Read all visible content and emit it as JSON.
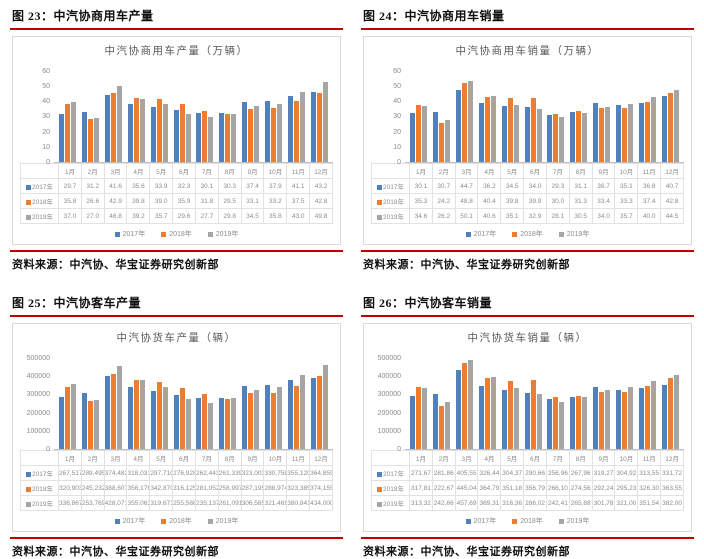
{
  "page": {
    "source_label": "资料来源：中汽协、华宝证券研究创新部"
  },
  "colors": {
    "rule": "#c00000",
    "series": [
      "#4f81bd",
      "#ed7d31",
      "#a5a5a5"
    ],
    "chart_border": "#d9d9d9",
    "table_border": "#e2e2e2",
    "muted_text": "#8c8c8c"
  },
  "legend_years": [
    "2017年",
    "2018年",
    "2019年"
  ],
  "chart_data": [
    {
      "type": "bar",
      "caption": "图 23：中汽协商用车产量",
      "title": "中汽协商用车产量（万辆）",
      "categories": [
        "1月",
        "2月",
        "3月",
        "4月",
        "5月",
        "6月",
        "7月",
        "8月",
        "9月",
        "10月",
        "11月",
        "12月"
      ],
      "ylim": [
        0,
        60
      ],
      "y_ticks": [
        0,
        10,
        20,
        30,
        40,
        50,
        60
      ],
      "grid": "off",
      "legend_position": "bottom",
      "series": [
        {
          "name": "2017年",
          "values": [
            29.7,
            31.2,
            41.6,
            35.6,
            33.9,
            32.3,
            30.1,
            30.3,
            37.4,
            37.9,
            41.1,
            43.2
          ],
          "labels": [
            "29.7",
            "31.2",
            "41.6",
            "35.6",
            "33.9",
            "32.3",
            "30.1",
            "30.3",
            "37.4",
            "37.9",
            "41.1",
            "43.2"
          ]
        },
        {
          "name": "2018年",
          "values": [
            35.8,
            26.6,
            42.9,
            39.8,
            39.0,
            35.9,
            31.8,
            29.5,
            33.1,
            33.2,
            37.5,
            42.8
          ],
          "labels": [
            "35.8",
            "26.6",
            "42.9",
            "39.8",
            "39.0",
            "35.9",
            "31.8",
            "29.5",
            "33.1",
            "33.2",
            "37.5",
            "42.8"
          ]
        },
        {
          "name": "2019年",
          "values": [
            37.0,
            27.0,
            46.8,
            39.2,
            35.7,
            29.6,
            27.7,
            29.8,
            34.5,
            35.8,
            43.0,
            49.8
          ],
          "labels": [
            "37.0",
            "27.0",
            "46.8",
            "39.2",
            "35.7",
            "29.6",
            "27.7",
            "29.8",
            "34.5",
            "35.8",
            "43.0",
            "49.8"
          ]
        }
      ]
    },
    {
      "type": "bar",
      "caption": "图 24：中汽协商用车销量",
      "title": "中汽协商用车销量（万辆）",
      "categories": [
        "1月",
        "2月",
        "3月",
        "4月",
        "5月",
        "6月",
        "7月",
        "8月",
        "9月",
        "10月",
        "11月",
        "12月"
      ],
      "ylim": [
        0,
        60
      ],
      "y_ticks": [
        0,
        10,
        20,
        30,
        40,
        50,
        60
      ],
      "grid": "off",
      "legend_position": "bottom",
      "series": [
        {
          "name": "2017年",
          "values": [
            30.1,
            30.7,
            44.7,
            36.2,
            34.5,
            34.0,
            29.3,
            31.1,
            36.7,
            35.1,
            36.8,
            40.7
          ],
          "labels": [
            "30.1",
            "30.7",
            "44.7",
            "36.2",
            "34.5",
            "34.0",
            "29.3",
            "31.1",
            "36.7",
            "35.1",
            "36.8",
            "40.7"
          ]
        },
        {
          "name": "2018年",
          "values": [
            35.3,
            24.2,
            48.8,
            40.4,
            39.8,
            39.9,
            30.0,
            31.3,
            33.4,
            33.3,
            37.4,
            42.8
          ],
          "labels": [
            "35.3",
            "24.2",
            "48.8",
            "40.4",
            "39.8",
            "39.9",
            "30.0",
            "31.3",
            "33.4",
            "33.3",
            "37.4",
            "42.8"
          ]
        },
        {
          "name": "2019年",
          "values": [
            34.6,
            26.2,
            50.1,
            40.6,
            35.1,
            32.9,
            28.1,
            30.5,
            34.0,
            35.7,
            40.0,
            44.5
          ],
          "labels": [
            "34.6",
            "26.2",
            "50.1",
            "40.6",
            "35.1",
            "32.9",
            "28.1",
            "30.5",
            "34.0",
            "35.7",
            "40.0",
            "44.5"
          ]
        }
      ]
    },
    {
      "type": "bar",
      "caption": "图 25：中汽协客车产量",
      "title": "中汽协货车产量（辆）",
      "categories": [
        "1月",
        "2月",
        "3月",
        "4月",
        "5月",
        "6月",
        "7月",
        "8月",
        "9月",
        "10月",
        "11月",
        "12月"
      ],
      "ylim": [
        0,
        500000
      ],
      "y_ticks": [
        0,
        100000,
        200000,
        300000,
        400000,
        500000
      ],
      "grid": "off",
      "legend_position": "bottom",
      "series": [
        {
          "name": "2017年",
          "values": [
            267517,
            289495,
            374482,
            318031,
            297710,
            276928,
            262443,
            261339,
            323003,
            330758,
            355120,
            364859
          ],
          "labels": [
            "267,517",
            "289,495",
            "374,482",
            "318,031",
            "297,710",
            "276,928",
            "262,443",
            "261,339",
            "323,003",
            "330,758",
            "355,120",
            "364,859"
          ]
        },
        {
          "name": "2018年",
          "values": [
            320903,
            245232,
            388607,
            356176,
            342870,
            316125,
            281052,
            258997,
            287195,
            288974,
            323385,
            374155
          ],
          "labels": [
            "320,903",
            "245,232",
            "388,607",
            "356,176",
            "342,870",
            "316,125",
            "281,052",
            "258,997",
            "287,195",
            "288,974",
            "323,385",
            "374,155"
          ]
        },
        {
          "name": "2019年",
          "values": [
            336867,
            253769,
            428071,
            355063,
            319671,
            255588,
            235137,
            261091,
            306585,
            321469,
            380841,
            434000
          ],
          "labels": [
            "336,867",
            "253,769",
            "428,071",
            "355,063",
            "319,671",
            "255,588",
            "235,137",
            "261,091",
            "306,585",
            "321,469",
            "380,841",
            "434,000"
          ]
        }
      ]
    },
    {
      "type": "bar",
      "caption": "图 26：中汽协客车销量",
      "title": "中汽协货车销量（辆）",
      "categories": [
        "1月",
        "2月",
        "3月",
        "4月",
        "5月",
        "6月",
        "7月",
        "8月",
        "9月",
        "10月",
        "11月",
        "12月"
      ],
      "ylim": [
        0,
        500000
      ],
      "y_ticks": [
        0,
        100000,
        200000,
        300000,
        400000,
        500000
      ],
      "grid": "off",
      "legend_position": "bottom",
      "series": [
        {
          "name": "2017年",
          "values": [
            271670,
            281860,
            405550,
            326440,
            304370,
            290660,
            256960,
            267960,
            319270,
            304920,
            313550,
            331720
          ],
          "labels": [
            "271,67",
            "281,86",
            "405,55",
            "326,44",
            "304,37",
            "290,66",
            "256,96",
            "267,96",
            "319,27",
            "304,92",
            "313,55",
            "331,72"
          ]
        },
        {
          "name": "2018年",
          "values": [
            317810,
            222670,
            445040,
            364790,
            351180,
            356790,
            266100,
            274560,
            292240,
            295230,
            326300,
            363550
          ],
          "labels": [
            "317,81",
            "222,67",
            "445,04",
            "364,79",
            "351,18",
            "356,79",
            "266,10",
            "274,56",
            "292,24",
            "295,23",
            "326,30",
            "363,55"
          ]
        },
        {
          "name": "2019年",
          "values": [
            313320,
            242660,
            457690,
            369310,
            316360,
            286020,
            242410,
            265880,
            301780,
            321000,
            351540,
            382000
          ],
          "labels": [
            "313,32",
            "242,66",
            "457,69",
            "369,31",
            "316,36",
            "286,02",
            "242,41",
            "265,88",
            "301,78",
            "321,00",
            "351,54",
            "382,00"
          ]
        }
      ]
    }
  ]
}
